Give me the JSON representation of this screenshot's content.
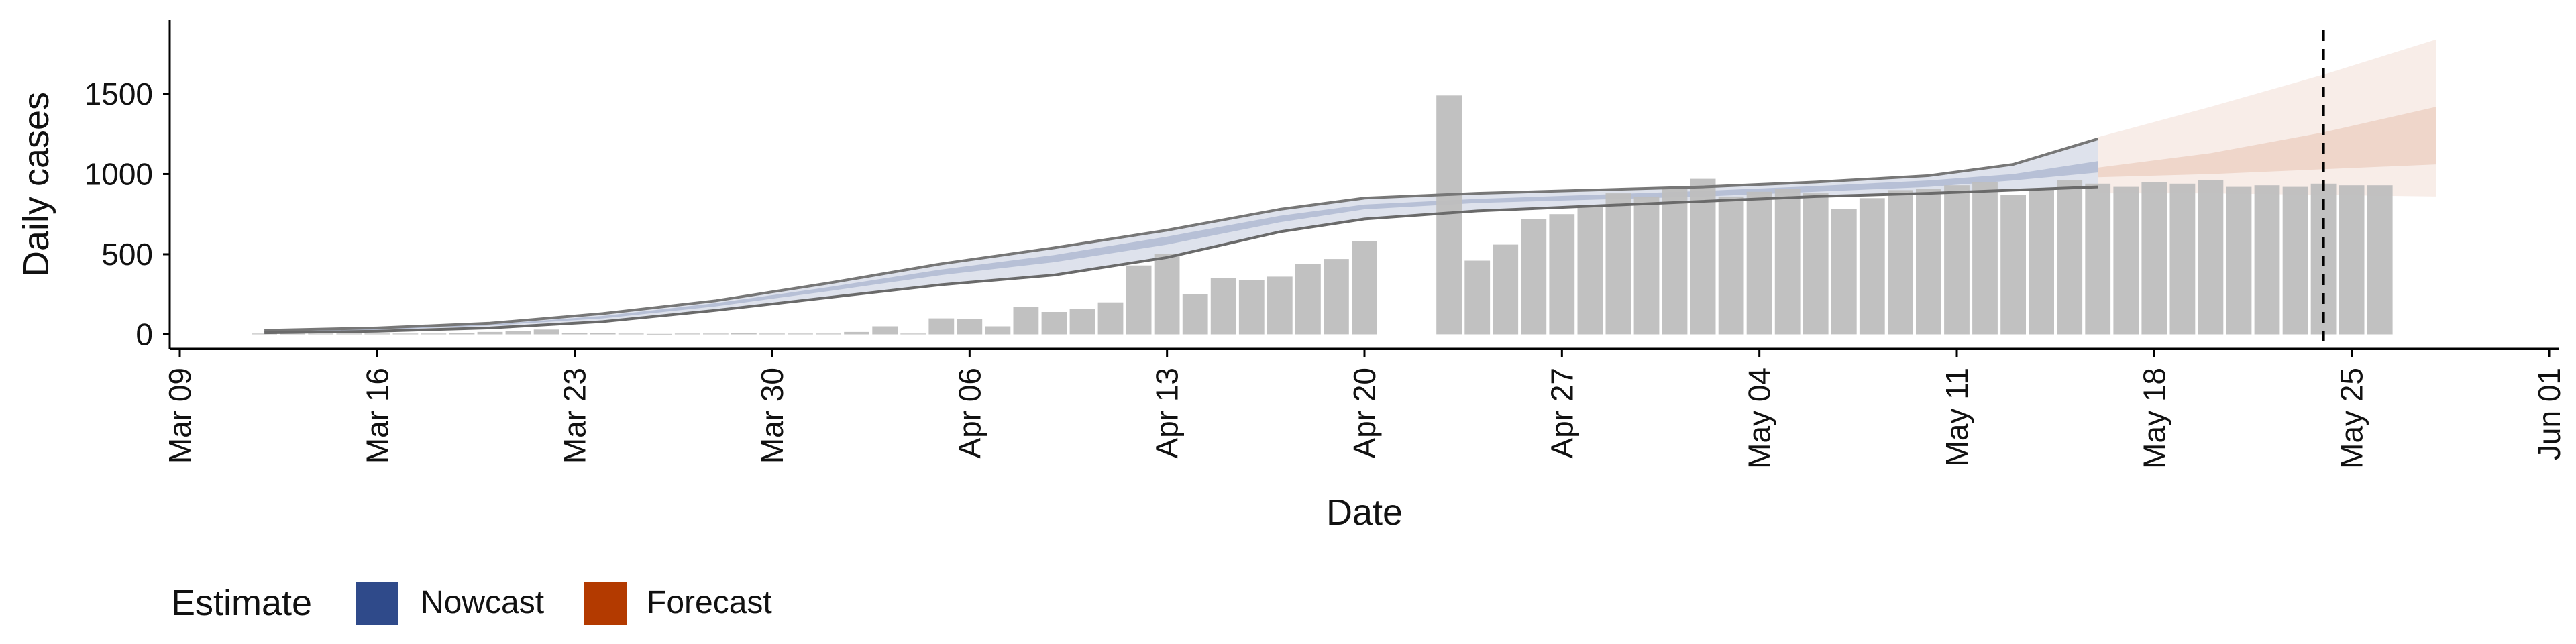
{
  "chart_data": {
    "type": "bar",
    "xlabel": "Date",
    "ylabel": "Daily cases",
    "x_ticks": [
      "Mar 09",
      "Mar 16",
      "Mar 23",
      "Mar 30",
      "Apr 06",
      "Apr 13",
      "Apr 20",
      "Apr 27",
      "May 04",
      "May 11",
      "May 18",
      "May 25",
      "Jun 01"
    ],
    "y_ticks": [
      0,
      500,
      1000,
      1500
    ],
    "xlim": [
      "2020-03-09",
      "2020-06-01"
    ],
    "ylim": [
      -90,
      1960
    ],
    "grid": false,
    "legend": {
      "position": "bottom-left",
      "title": "Estimate",
      "items": [
        {
          "label": "Nowcast",
          "color": "#2F4A8A"
        },
        {
          "label": "Forecast",
          "color": "#B33A00"
        }
      ]
    },
    "reference_line": {
      "date": "2020-05-24",
      "style": "dashed"
    },
    "bar_color": "#BEBEBE",
    "bars": {
      "start_date": "2020-03-12",
      "values": [
        5,
        5,
        5,
        5,
        5,
        5,
        5,
        8,
        15,
        20,
        30,
        10,
        8,
        5,
        3,
        5,
        5,
        10,
        5,
        5,
        5,
        15,
        50,
        5,
        100,
        95,
        50,
        170,
        140,
        160,
        200,
        430,
        500,
        250,
        350,
        340,
        360,
        440,
        470,
        580,
        0,
        0,
        1490,
        460,
        560,
        720,
        750,
        800,
        880,
        860,
        920,
        970,
        860,
        890,
        910,
        880,
        780,
        850,
        900,
        910,
        930,
        950,
        870,
        910,
        960,
        940,
        920,
        950,
        940,
        960,
        920,
        930,
        920,
        940,
        930,
        930
      ]
    },
    "series": [
      {
        "name": "Nowcast",
        "color": "#2F4A8A",
        "dates": [
          "2020-03-12",
          "2020-03-16",
          "2020-03-20",
          "2020-03-24",
          "2020-03-28",
          "2020-04-01",
          "2020-04-05",
          "2020-04-09",
          "2020-04-13",
          "2020-04-17",
          "2020-04-20",
          "2020-04-24",
          "2020-04-28",
          "2020-05-02",
          "2020-05-06",
          "2020-05-10",
          "2020-05-13",
          "2020-05-16"
        ],
        "outer_low": [
          10,
          20,
          40,
          80,
          150,
          230,
          310,
          370,
          480,
          640,
          720,
          770,
          800,
          830,
          860,
          880,
          900,
          920
        ],
        "outer_high": [
          25,
          40,
          70,
          130,
          210,
          320,
          440,
          540,
          650,
          780,
          850,
          880,
          900,
          920,
          950,
          990,
          1060,
          1220
        ],
        "inner_low": [
          15,
          28,
          55,
          100,
          175,
          270,
          370,
          450,
          560,
          700,
          780,
          820,
          840,
          860,
          890,
          920,
          960,
          1010
        ],
        "inner_high": [
          20,
          34,
          62,
          115,
          195,
          295,
          405,
          495,
          610,
          740,
          810,
          845,
          870,
          895,
          925,
          960,
          1000,
          1080
        ]
      },
      {
        "name": "Forecast",
        "color": "#B33A00",
        "dates": [
          "2020-05-16",
          "2020-05-20",
          "2020-05-24",
          "2020-05-28"
        ],
        "outer_low": [
          880,
          880,
          870,
          860
        ],
        "outer_high": [
          1230,
          1420,
          1620,
          1840
        ],
        "inner_low": [
          980,
          1000,
          1030,
          1060
        ],
        "inner_high": [
          1040,
          1130,
          1260,
          1420
        ]
      }
    ]
  }
}
